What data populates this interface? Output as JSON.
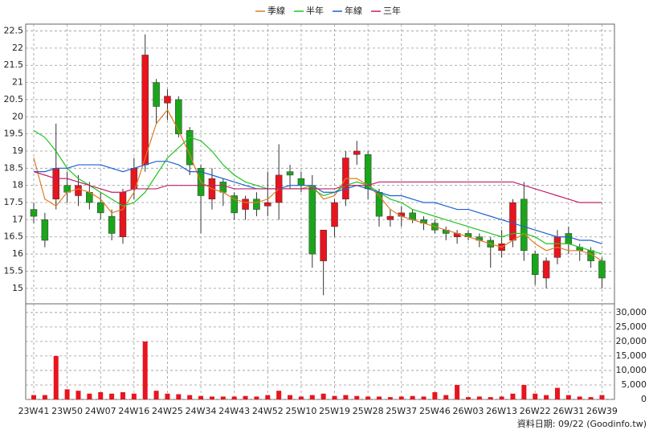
{
  "chart_data": {
    "type": "candlestick",
    "categories": [
      "23W41",
      null,
      null,
      "23W50",
      null,
      null,
      "24W07",
      null,
      null,
      "24W16",
      null,
      null,
      "24W25",
      null,
      null,
      "24W34",
      null,
      null,
      "24W43",
      null,
      null,
      "24W52",
      null,
      null,
      "25W10",
      null,
      null,
      "25W19",
      null,
      null,
      "25W28",
      null,
      null,
      "25W37",
      null,
      null,
      "25W46",
      null,
      null,
      "26W03",
      null,
      null,
      "26W13",
      null,
      null,
      "26W22",
      null,
      null,
      "26W31",
      null,
      null,
      "26W39"
    ],
    "open": [
      17.3,
      17.0,
      17.6,
      18.0,
      17.7,
      17.8,
      17.5,
      17.1,
      16.5,
      17.9,
      18.6,
      21.0,
      20.4,
      20.5,
      19.6,
      18.5,
      17.6,
      18.1,
      17.7,
      17.3,
      17.6,
      17.4,
      17.5,
      18.4,
      18.2,
      18.0,
      15.8,
      16.8,
      17.6,
      18.9,
      18.9,
      17.8,
      17.0,
      17.1,
      17.2,
      17.0,
      16.9,
      16.7,
      16.5,
      16.6,
      16.5,
      16.4,
      16.1,
      16.4,
      17.6,
      16.0,
      15.3,
      15.9,
      16.6,
      16.2,
      16.1,
      15.8
    ],
    "high": [
      17.5,
      17.2,
      19.8,
      18.4,
      18.3,
      18.1,
      17.8,
      17.3,
      17.9,
      18.8,
      22.4,
      21.1,
      20.8,
      20.6,
      19.7,
      18.6,
      18.5,
      18.2,
      17.8,
      17.7,
      17.8,
      18.4,
      19.2,
      18.6,
      18.4,
      18.3,
      16.7,
      17.6,
      19.0,
      19.3,
      19.0,
      17.9,
      17.3,
      17.4,
      17.3,
      17.1,
      17.0,
      16.8,
      16.7,
      16.7,
      16.6,
      16.5,
      16.7,
      17.6,
      18.1,
      16.1,
      15.9,
      16.7,
      16.8,
      16.3,
      16.2,
      15.9
    ],
    "low": [
      16.9,
      16.2,
      17.3,
      17.5,
      17.4,
      17.3,
      17.0,
      16.4,
      16.3,
      17.6,
      18.4,
      19.8,
      19.9,
      19.4,
      18.3,
      16.6,
      17.3,
      17.4,
      17.0,
      17.0,
      17.1,
      17.1,
      17.0,
      17.9,
      17.8,
      15.6,
      14.8,
      16.5,
      17.4,
      18.6,
      17.6,
      16.8,
      16.8,
      16.8,
      16.9,
      16.7,
      16.6,
      16.4,
      16.3,
      16.4,
      16.2,
      15.6,
      15.9,
      16.2,
      15.8,
      15.1,
      15.0,
      15.7,
      16.0,
      15.8,
      15.6,
      15.0
    ],
    "close": [
      17.1,
      16.4,
      18.5,
      17.8,
      18.0,
      17.5,
      17.2,
      16.6,
      17.8,
      18.5,
      21.8,
      20.3,
      20.6,
      19.5,
      18.6,
      17.7,
      18.2,
      17.8,
      17.2,
      17.6,
      17.3,
      17.5,
      18.3,
      18.3,
      18.0,
      16.0,
      16.7,
      17.5,
      18.8,
      19.0,
      17.9,
      17.1,
      17.1,
      17.2,
      17.0,
      16.9,
      16.7,
      16.6,
      16.6,
      16.5,
      16.4,
      16.2,
      16.3,
      17.5,
      16.1,
      15.4,
      15.8,
      16.5,
      16.3,
      16.1,
      15.8,
      15.3
    ],
    "series": [
      {
        "name": "季線",
        "color": "#e07b20",
        "values": [
          18.8,
          17.6,
          17.4,
          17.8,
          17.9,
          17.8,
          17.6,
          17.2,
          17.3,
          17.8,
          18.8,
          19.8,
          20.2,
          19.6,
          18.9,
          18.1,
          17.9,
          17.8,
          17.6,
          17.5,
          17.5,
          17.6,
          17.9,
          17.9,
          17.9,
          18.0,
          17.6,
          17.7,
          18.2,
          18.2,
          18.0,
          17.7,
          17.3,
          17.1,
          17.0,
          16.9,
          16.8,
          16.7,
          16.6,
          16.5,
          16.4,
          16.3,
          16.2,
          16.4,
          16.6,
          16.3,
          16.1,
          16.2,
          16.1,
          16.1,
          16.0,
          15.8
        ]
      },
      {
        "name": "半年",
        "color": "#22c322",
        "values": [
          19.6,
          19.4,
          19.0,
          18.5,
          18.2,
          18.0,
          17.8,
          17.6,
          17.4,
          17.5,
          17.8,
          18.3,
          18.8,
          19.1,
          19.4,
          19.3,
          19.0,
          18.6,
          18.3,
          18.1,
          18.0,
          17.9,
          17.9,
          17.9,
          17.9,
          17.9,
          17.7,
          17.8,
          18.0,
          18.1,
          18.0,
          17.8,
          17.6,
          17.5,
          17.3,
          17.2,
          17.1,
          17.0,
          16.9,
          16.8,
          16.7,
          16.6,
          16.5,
          16.6,
          16.6,
          16.5,
          16.3,
          16.3,
          16.3,
          16.2,
          16.1,
          16.0
        ]
      },
      {
        "name": "年線",
        "color": "#1f5fd0",
        "values": [
          18.4,
          18.4,
          18.5,
          18.5,
          18.6,
          18.6,
          18.6,
          18.5,
          18.4,
          18.5,
          18.6,
          18.7,
          18.7,
          18.6,
          18.4,
          18.4,
          18.3,
          18.2,
          18.1,
          18.0,
          17.9,
          17.9,
          17.9,
          18.0,
          18.0,
          18.0,
          17.8,
          17.8,
          17.9,
          18.0,
          17.9,
          17.8,
          17.7,
          17.7,
          17.6,
          17.5,
          17.5,
          17.4,
          17.3,
          17.3,
          17.2,
          17.1,
          17.0,
          16.9,
          16.8,
          16.7,
          16.6,
          16.5,
          16.5,
          16.4,
          16.4,
          16.3
        ]
      },
      {
        "name": "三年",
        "color": "#c0206a",
        "values": [
          18.4,
          18.3,
          18.2,
          18.2,
          18.1,
          18.0,
          17.9,
          17.8,
          17.8,
          17.9,
          17.9,
          17.9,
          18.0,
          18.0,
          18.0,
          18.0,
          18.0,
          18.0,
          17.9,
          17.9,
          17.9,
          17.9,
          17.9,
          17.9,
          17.9,
          17.9,
          17.9,
          17.9,
          18.0,
          18.0,
          18.0,
          18.1,
          18.1,
          18.1,
          18.1,
          18.1,
          18.1,
          18.1,
          18.1,
          18.1,
          18.1,
          18.1,
          18.1,
          18.1,
          18.0,
          17.9,
          17.8,
          17.7,
          17.6,
          17.5,
          17.5,
          17.5
        ]
      }
    ],
    "up_color": "#e8141e",
    "down_color": "#1aa51a",
    "ylim": [
      14.55,
      22.7
    ],
    "yticks": [
      15,
      15.5,
      16,
      16.5,
      17,
      17.5,
      18,
      18.5,
      19,
      19.5,
      20,
      20.5,
      21,
      21.5,
      22,
      22.5
    ],
    "grid": true,
    "volume": {
      "type": "bar",
      "color": "#e8141e",
      "values": [
        1500,
        1500,
        15000,
        3500,
        3000,
        2000,
        2500,
        2000,
        2500,
        2000,
        20000,
        3000,
        2000,
        1800,
        1500,
        1200,
        1000,
        1000,
        1000,
        1200,
        1000,
        1500,
        3000,
        1500,
        1000,
        1500,
        2000,
        1200,
        1500,
        1200,
        1000,
        1000,
        800,
        1000,
        1200,
        1000,
        2500,
        1500,
        5000,
        800,
        1000,
        800,
        1000,
        2000,
        5000,
        2000,
        1500,
        4000,
        1500,
        1000,
        800,
        1500
      ],
      "ylim": [
        0,
        33000
      ],
      "yticks": [
        0,
        {
          "value": 5000,
          "label": "5,000"
        },
        {
          "value": 10000,
          "label": "10,000"
        },
        {
          "value": 15000,
          "label": "15,000"
        },
        {
          "value": 20000,
          "label": "20,000"
        },
        {
          "value": 25000,
          "label": "25,000"
        },
        {
          "value": 30000,
          "label": "30,000"
        }
      ]
    }
  },
  "footer": "資料日期: 09/22  (Goodinfo.tw)"
}
